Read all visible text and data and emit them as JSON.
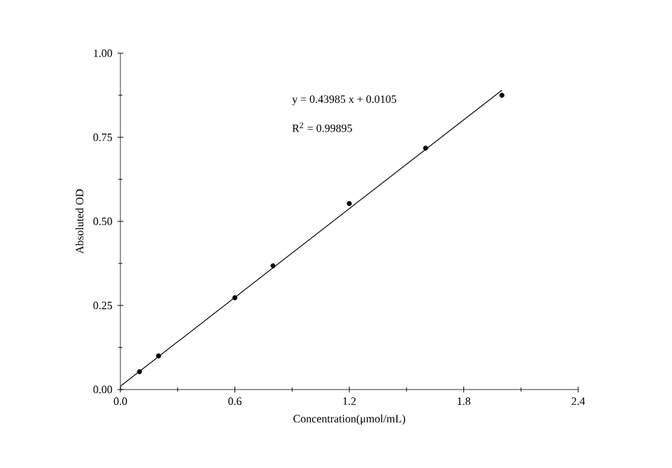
{
  "chart_data": {
    "type": "scatter",
    "xlabel": "Concentration(μmol/mL)",
    "ylabel": "Absoluted OD",
    "annotations": [
      "y = 0.43985 x + 0.0105",
      "R$^{2}$ = 0.99895"
    ],
    "series": [
      {
        "color": "#000000",
        "marker": "circle",
        "x": [
          0.1,
          0.2,
          0.6,
          0.8,
          1.2,
          1.6,
          2.0
        ],
        "values": [
          0.053,
          0.1,
          0.273,
          0.368,
          0.553,
          0.718,
          0.875
        ]
      },
      {
        "type": "line",
        "color": "#000000",
        "marker": "none",
        "line_style": "solid",
        "x": [
          0.0,
          2.0
        ],
        "values": [
          0.01,
          0.89
        ]
      }
    ],
    "xlim": [
      0,
      2.4
    ],
    "xticks": [
      {
        "value": 0,
        "label": "0.0"
      },
      0.6,
      1.2,
      1.8,
      2.4
    ],
    "ylim": [
      0,
      1
    ],
    "yticks": [
      {
        "value": 0,
        "label": "0.00"
      },
      0.25,
      {
        "value": 0.5,
        "label": "0.50"
      },
      0.75,
      {
        "value": 1,
        "label": "1.00"
      }
    ],
    "grid": false
  }
}
